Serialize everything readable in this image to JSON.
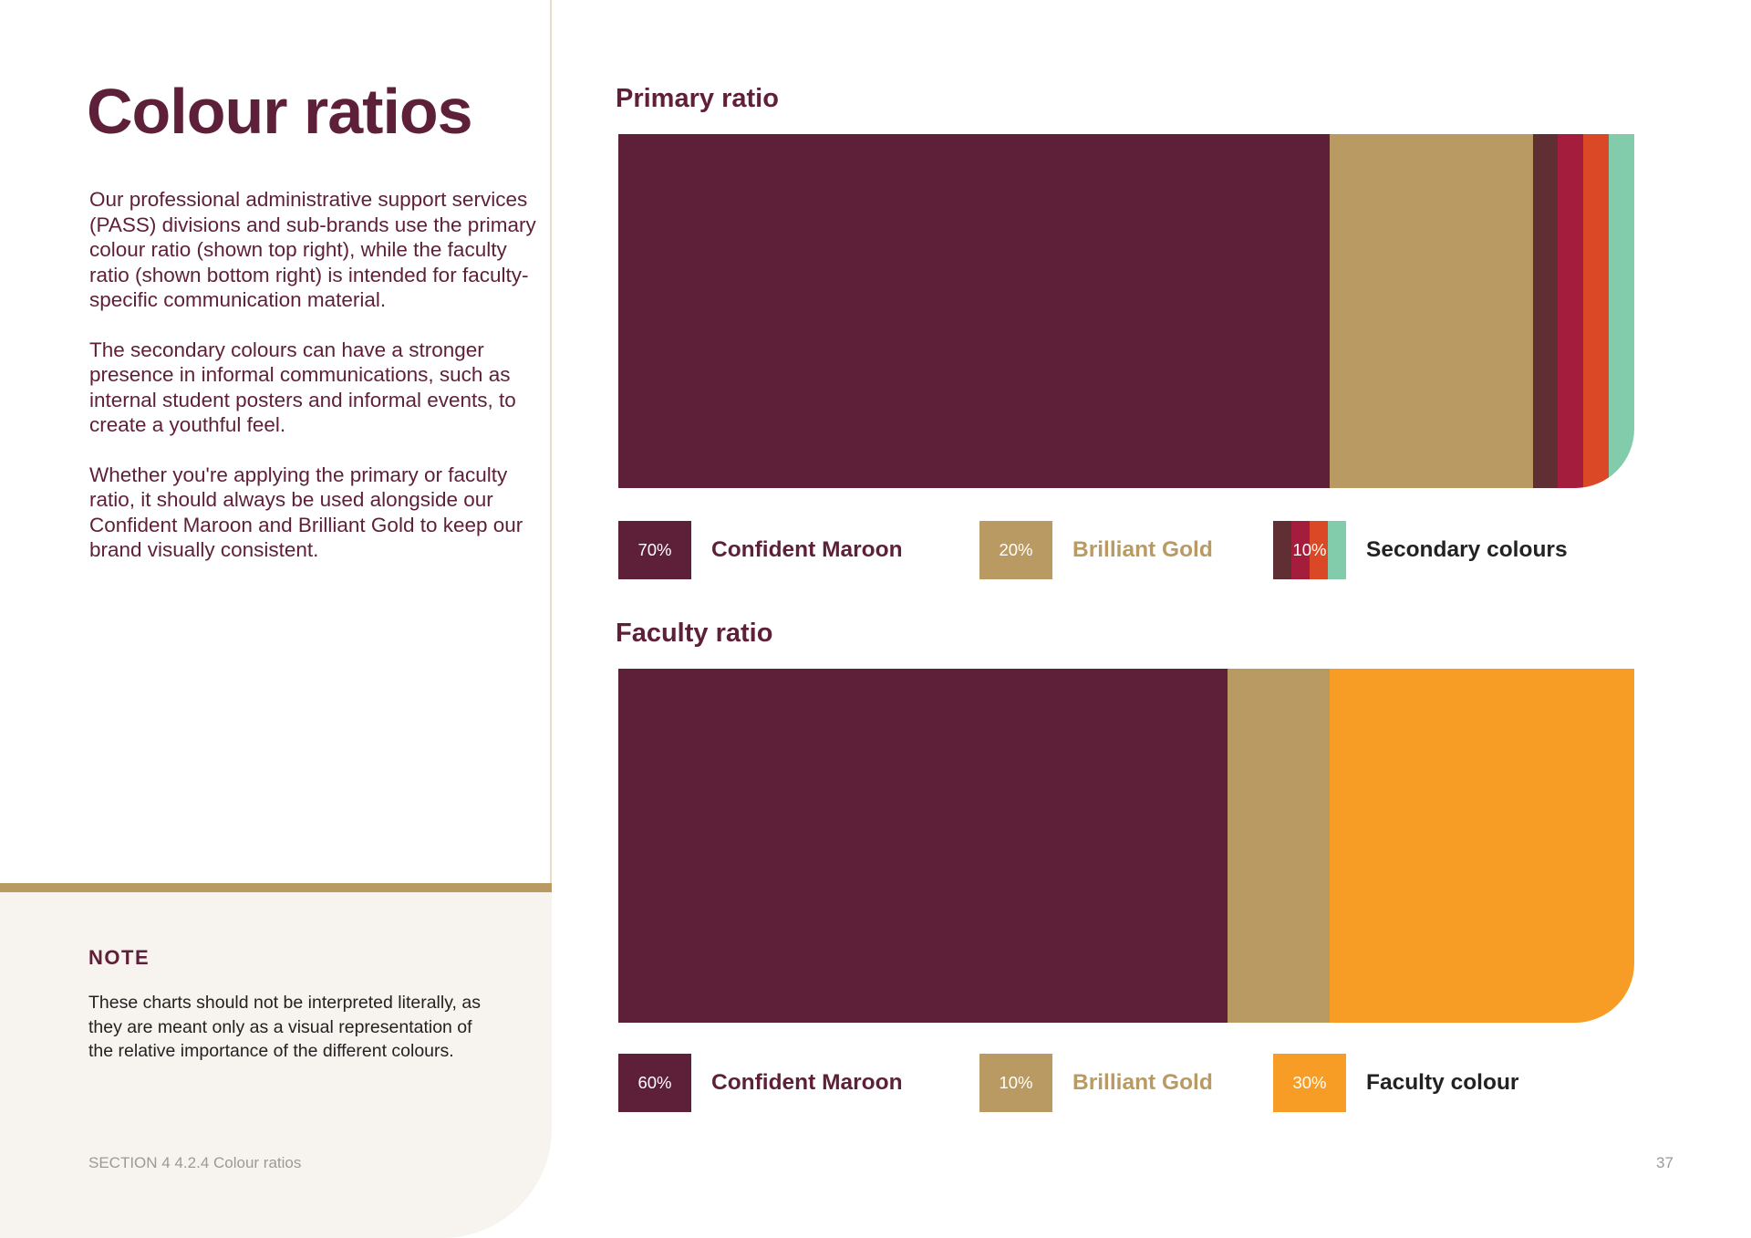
{
  "page": {
    "title": "Colour ratios",
    "intro": [
      "Our professional administrative support services (PASS) divisions and sub-brands use the primary colour ratio (shown top right), while the faculty ratio (shown bottom right) is intended for faculty-specific communication material.",
      "The secondary colours can have a stronger presence in informal communications, such as internal student posters and informal events, to create a youthful feel.",
      "Whether you're applying the primary or faculty ratio, it should always be used alongside our Confident Maroon and Brilliant Gold to keep our brand visually consistent."
    ]
  },
  "note": {
    "title": "NOTE",
    "body": "These charts should not be interpreted literally, as they are meant only as a visual representation of the relative importance of the different colours."
  },
  "footer": {
    "section": "SECTION 4  4.2.4 Colour ratios",
    "page_number": "37"
  },
  "colors": {
    "maroon": "#5e1f39",
    "gold": "#b99a62",
    "secondary_brown": "#5f2f33",
    "secondary_crimson": "#a41d3c",
    "secondary_orange_red": "#db4826",
    "secondary_mint": "#82cbab",
    "faculty_orange": "#f79d26"
  },
  "chart_data": [
    {
      "type": "bar",
      "title": "Primary ratio",
      "segments": [
        {
          "name": "Confident Maroon",
          "value": 70,
          "color": "#5e1f39"
        },
        {
          "name": "Brilliant Gold",
          "value": 20,
          "color": "#b99a62"
        },
        {
          "name": "Secondary colours",
          "value": 10,
          "color": "#5f2f33",
          "parts": [
            {
              "value": 2.5,
              "color": "#5f2f33"
            },
            {
              "value": 2.5,
              "color": "#a41d3c"
            },
            {
              "value": 2.5,
              "color": "#db4826"
            },
            {
              "value": 2.5,
              "color": "#82cbab"
            }
          ]
        }
      ],
      "legend": [
        {
          "pct": "70%",
          "label": "Confident Maroon",
          "label_color": "#5e1f39",
          "swatch": [
            "#5e1f39"
          ]
        },
        {
          "pct": "20%",
          "label": "Brilliant Gold",
          "label_color": "#b99a62",
          "swatch": [
            "#b99a62"
          ]
        },
        {
          "pct": "10%",
          "label": "Secondary colours",
          "label_color": "#222222",
          "swatch": [
            "#5f2f33",
            "#a41d3c",
            "#db4826",
            "#82cbab"
          ]
        }
      ]
    },
    {
      "type": "bar",
      "title": "Faculty ratio",
      "segments": [
        {
          "name": "Confident Maroon",
          "value": 60,
          "color": "#5e1f39"
        },
        {
          "name": "Brilliant Gold",
          "value": 10,
          "color": "#b99a62"
        },
        {
          "name": "Faculty colour",
          "value": 30,
          "color": "#f79d26"
        }
      ],
      "legend": [
        {
          "pct": "60%",
          "label": "Confident Maroon",
          "label_color": "#5e1f39",
          "swatch": [
            "#5e1f39"
          ]
        },
        {
          "pct": "10%",
          "label": "Brilliant Gold",
          "label_color": "#b99a62",
          "swatch": [
            "#b99a62"
          ]
        },
        {
          "pct": "30%",
          "label": "Faculty colour",
          "label_color": "#222222",
          "swatch": [
            "#f79d26"
          ]
        }
      ]
    }
  ]
}
